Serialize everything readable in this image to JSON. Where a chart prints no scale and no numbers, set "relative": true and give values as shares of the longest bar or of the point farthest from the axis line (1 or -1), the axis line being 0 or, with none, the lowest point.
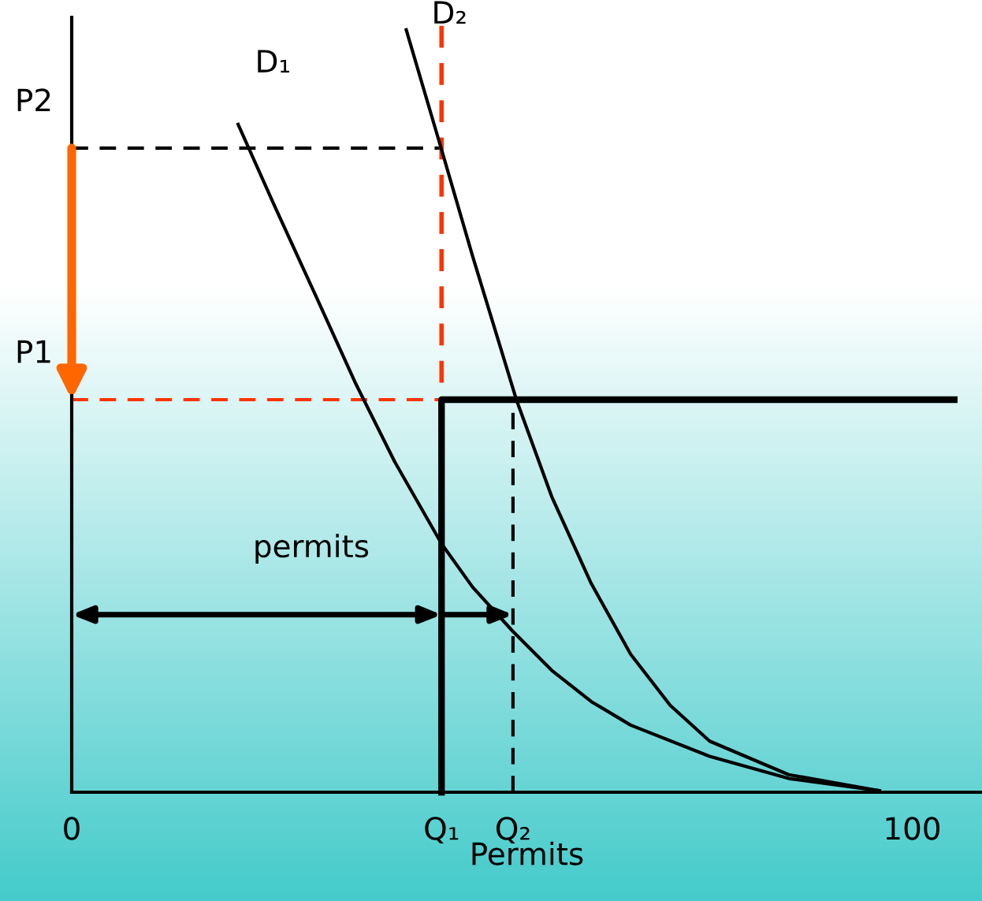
{
  "chart_data": {
    "type": "line",
    "relative": true,
    "xlabel": "Permits",
    "xlim": [
      0,
      108.3
    ],
    "xticks": [
      0,
      {
        "value": 44,
        "label": "Q₁"
      },
      {
        "value": 52.5,
        "label": "Q₂"
      },
      100
    ],
    "series": [
      {
        "name": "D₁",
        "color": "#000000",
        "x": [
          19.8,
          24.3,
          29.0,
          33.7,
          38.4,
          44.0,
          47.7,
          52.4,
          57.1,
          61.8,
          66.5,
          75.9,
          85.3,
          96.1
        ],
        "values": [
          0.876,
          0.765,
          0.652,
          0.538,
          0.434,
          0.326,
          0.269,
          0.212,
          0.16,
          0.119,
          0.088,
          0.047,
          0.018,
          0.002
        ]
      },
      {
        "name": "D₂",
        "color": "#000000",
        "x": [
          39.8,
          44.0,
          47.7,
          52.9,
          57.1,
          61.8,
          66.5,
          71.2,
          75.9,
          85.3,
          96.1
        ],
        "values": [
          1.0,
          0.843,
          0.703,
          0.515,
          0.388,
          0.274,
          0.181,
          0.114,
          0.067,
          0.023,
          0.002
        ]
      },
      {
        "color": "#000000",
        "x": [
          44,
          44,
          105
        ],
        "values": [
          0,
          0.515,
          0.515
        ]
      }
    ],
    "ref_lines": [
      {
        "axis": "y",
        "value": 0.845,
        "label": "P2",
        "color": "#000000",
        "line_style": "dashed"
      },
      {
        "axis": "y",
        "value": 0.515,
        "label": "P1",
        "color": "#ff3300",
        "line_style": "dashed"
      },
      {
        "axis": "x",
        "value": 44,
        "label": null,
        "color": "#ff3300",
        "line_style": "dashed"
      },
      {
        "axis": "x",
        "value": 52.5,
        "label": null,
        "color": "#000000",
        "line_style": "dashed"
      }
    ],
    "annotations": [
      "permits"
    ],
    "grid": false,
    "legend": false,
    "marker": "none",
    "line_style": "solid"
  }
}
